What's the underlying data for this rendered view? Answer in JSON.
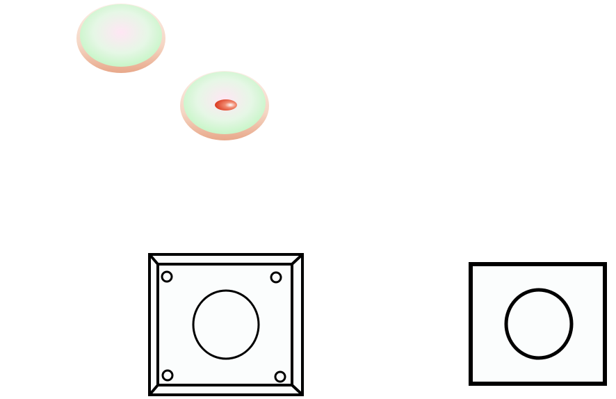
{
  "diagram": {
    "components": [
      {
        "id": "dish-1",
        "kind": "shallow-dish",
        "has_center_dot": false
      },
      {
        "id": "dish-2",
        "kind": "shallow-dish",
        "has_center_dot": true
      },
      {
        "id": "plate-with-bolts",
        "kind": "mounting-plate",
        "bolt_holes": 4,
        "central_holes": 1,
        "beveled_frame": true
      },
      {
        "id": "plain-plate",
        "kind": "plate",
        "bolt_holes": 0,
        "central_holes": 1,
        "beveled_frame": false
      }
    ],
    "colors": {
      "dish_inner_center": "#ffe6f4",
      "dish_inner_edge": "#c8f5c8",
      "dish_rim": "#f5c8b0",
      "dish_shadow": "#eab89a",
      "center_dot": "#e0452a",
      "plate_fill": "#fbfdfd",
      "outline": "#000000"
    }
  }
}
